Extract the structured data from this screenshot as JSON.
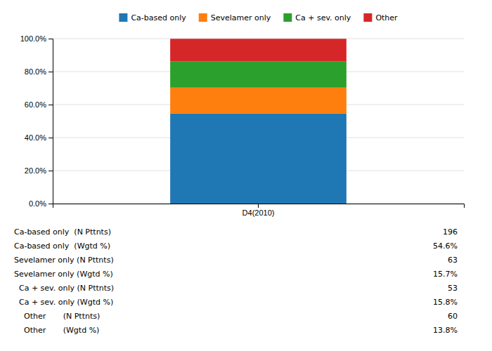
{
  "chart_data": {
    "type": "bar",
    "stacked": true,
    "grid": true,
    "legend": "top",
    "categories": [
      "D4(2010)"
    ],
    "series": [
      {
        "name": "Ca-based only",
        "values": [
          54.6
        ]
      },
      {
        "name": "Sevelamer only",
        "values": [
          15.7
        ]
      },
      {
        "name": "Ca + sev. only",
        "values": [
          15.8
        ]
      },
      {
        "name": "Other",
        "values": [
          13.8
        ]
      }
    ],
    "ylim": [
      0,
      100
    ],
    "yticks": [
      {
        "value": 0,
        "label": "0.0%"
      },
      {
        "value": 20,
        "label": "20.0%"
      },
      {
        "value": 40,
        "label": "40.0%"
      },
      {
        "value": 60,
        "label": "60.0%"
      },
      {
        "value": 80,
        "label": "80.0%"
      },
      {
        "value": 100,
        "label": "100.0%"
      }
    ],
    "annotations": [
      {
        "label": "Ca-based only  (N Pttnts)",
        "text": "196"
      },
      {
        "label": "Ca-based only  (Wgtd %)",
        "text": "54.6%"
      },
      {
        "label": "Sevelamer only (N Pttnts)",
        "text": "63"
      },
      {
        "label": "Sevelamer only (Wgtd %)",
        "text": "15.7%"
      },
      {
        "label": "  Ca + sev. only (N Pttnts)",
        "text": "53"
      },
      {
        "label": "  Ca + sev. only (Wgtd %)",
        "text": "15.8%"
      },
      {
        "label": "    Other       (N Pttnts)",
        "text": "60"
      },
      {
        "label": "    Other       (Wgtd %)",
        "text": "13.8%"
      }
    ]
  }
}
